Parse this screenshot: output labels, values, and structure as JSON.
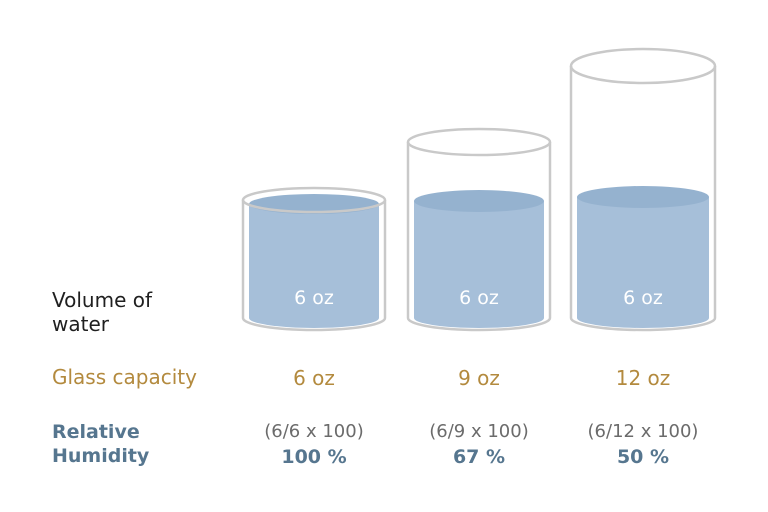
{
  "rows": {
    "volume_title": "Volume of water",
    "capacity_title": "Glass capacity",
    "humidity_title": "Relative Humidity"
  },
  "glasses": [
    {
      "water_label": "6 oz",
      "capacity": "6 oz",
      "formula": "(6/6 x 100)",
      "percent": "100 %",
      "fill_fraction": 1.0
    },
    {
      "water_label": "6 oz",
      "capacity": "9 oz",
      "formula": "(6/9 x 100)",
      "percent": "67 %",
      "fill_fraction": 0.67
    },
    {
      "water_label": "6 oz",
      "capacity": "12 oz",
      "formula": "(6/12 x 100)",
      "percent": "50 %",
      "fill_fraction": 0.5
    }
  ],
  "colors": {
    "water": "#a6bfd9",
    "water_top": "#95b2cf",
    "glass_outline": "#c9c9c9",
    "capacity_text": "#b38a3e",
    "humidity_text": "#56768f"
  }
}
